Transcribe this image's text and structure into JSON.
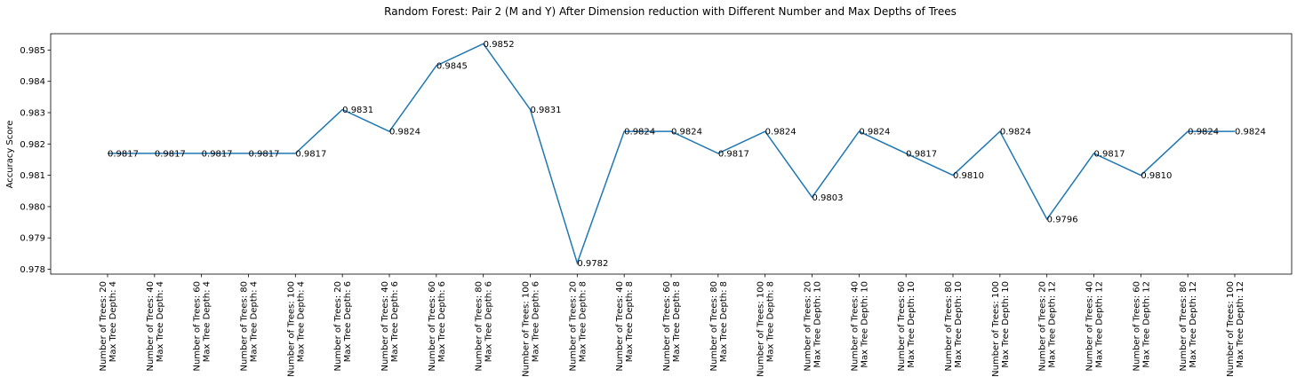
{
  "chart_data": {
    "type": "line",
    "title": "Random Forest: Pair 2 (M and Y) After Dimension reduction with Different Number and Max Depths of Trees",
    "xlabel": "",
    "ylabel": "Accuracy Score",
    "ylim": [
      0.9778,
      0.9855
    ],
    "yticks": [
      "0.978",
      "0.979",
      "0.980",
      "0.981",
      "0.982",
      "0.983",
      "0.984",
      "0.985"
    ],
    "grid": false,
    "line_color": "#1f77b4",
    "categories": [
      [
        "Number of Trees: 20",
        "Max Tree Depth: 4"
      ],
      [
        "Number of Trees: 40",
        "Max Tree Depth: 4"
      ],
      [
        "Number of Trees: 60",
        "Max Tree Depth: 4"
      ],
      [
        "Number of Trees: 80",
        "Max Tree Depth: 4"
      ],
      [
        "Number of Trees: 100",
        "Max Tree Depth: 4"
      ],
      [
        "Number of Trees: 20",
        "Max Tree Depth: 6"
      ],
      [
        "Number of Trees: 40",
        "Max Tree Depth: 6"
      ],
      [
        "Number of Trees: 60",
        "Max Tree Depth: 6"
      ],
      [
        "Number of Trees: 80",
        "Max Tree Depth: 6"
      ],
      [
        "Number of Trees: 100",
        "Max Tree Depth: 6"
      ],
      [
        "Number of Trees: 20",
        "Max Tree Depth: 8"
      ],
      [
        "Number of Trees: 40",
        "Max Tree Depth: 8"
      ],
      [
        "Number of Trees: 60",
        "Max Tree Depth: 8"
      ],
      [
        "Number of Trees: 80",
        "Max Tree Depth: 8"
      ],
      [
        "Number of Trees: 100",
        "Max Tree Depth: 8"
      ],
      [
        "Number of Trees: 20",
        "Max Tree Depth: 10"
      ],
      [
        "Number of Trees: 40",
        "Max Tree Depth: 10"
      ],
      [
        "Number of Trees: 60",
        "Max Tree Depth: 10"
      ],
      [
        "Number of Trees: 80",
        "Max Tree Depth: 10"
      ],
      [
        "Number of Trees: 100",
        "Max Tree Depth: 10"
      ],
      [
        "Number of Trees: 20",
        "Max Tree Depth: 12"
      ],
      [
        "Number of Trees: 40",
        "Max Tree Depth: 12"
      ],
      [
        "Number of Trees: 60",
        "Max Tree Depth: 12"
      ],
      [
        "Number of Trees: 80",
        "Max Tree Depth: 12"
      ],
      [
        "Number of Trees: 100",
        "Max Tree Depth: 12"
      ]
    ],
    "values": [
      0.9817,
      0.9817,
      0.9817,
      0.9817,
      0.9817,
      0.9831,
      0.9824,
      0.9845,
      0.9852,
      0.9831,
      0.9782,
      0.9824,
      0.9824,
      0.9817,
      0.9824,
      0.9803,
      0.9824,
      0.9817,
      0.981,
      0.9824,
      0.9796,
      0.9817,
      0.981,
      0.9824,
      0.9824
    ],
    "value_labels": [
      "0.9817",
      "0.9817",
      "0.9817",
      "0.9817",
      "0.9817",
      "0.9831",
      "0.9824",
      "0.9845",
      "0.9852",
      "0.9831",
      "0.9782",
      "0.9824",
      "0.9824",
      "0.9817",
      "0.9824",
      "0.9803",
      "0.9824",
      "0.9817",
      "0.9810",
      "0.9824",
      "0.9796",
      "0.9817",
      "0.9810",
      "0.9824",
      "0.9824"
    ]
  }
}
